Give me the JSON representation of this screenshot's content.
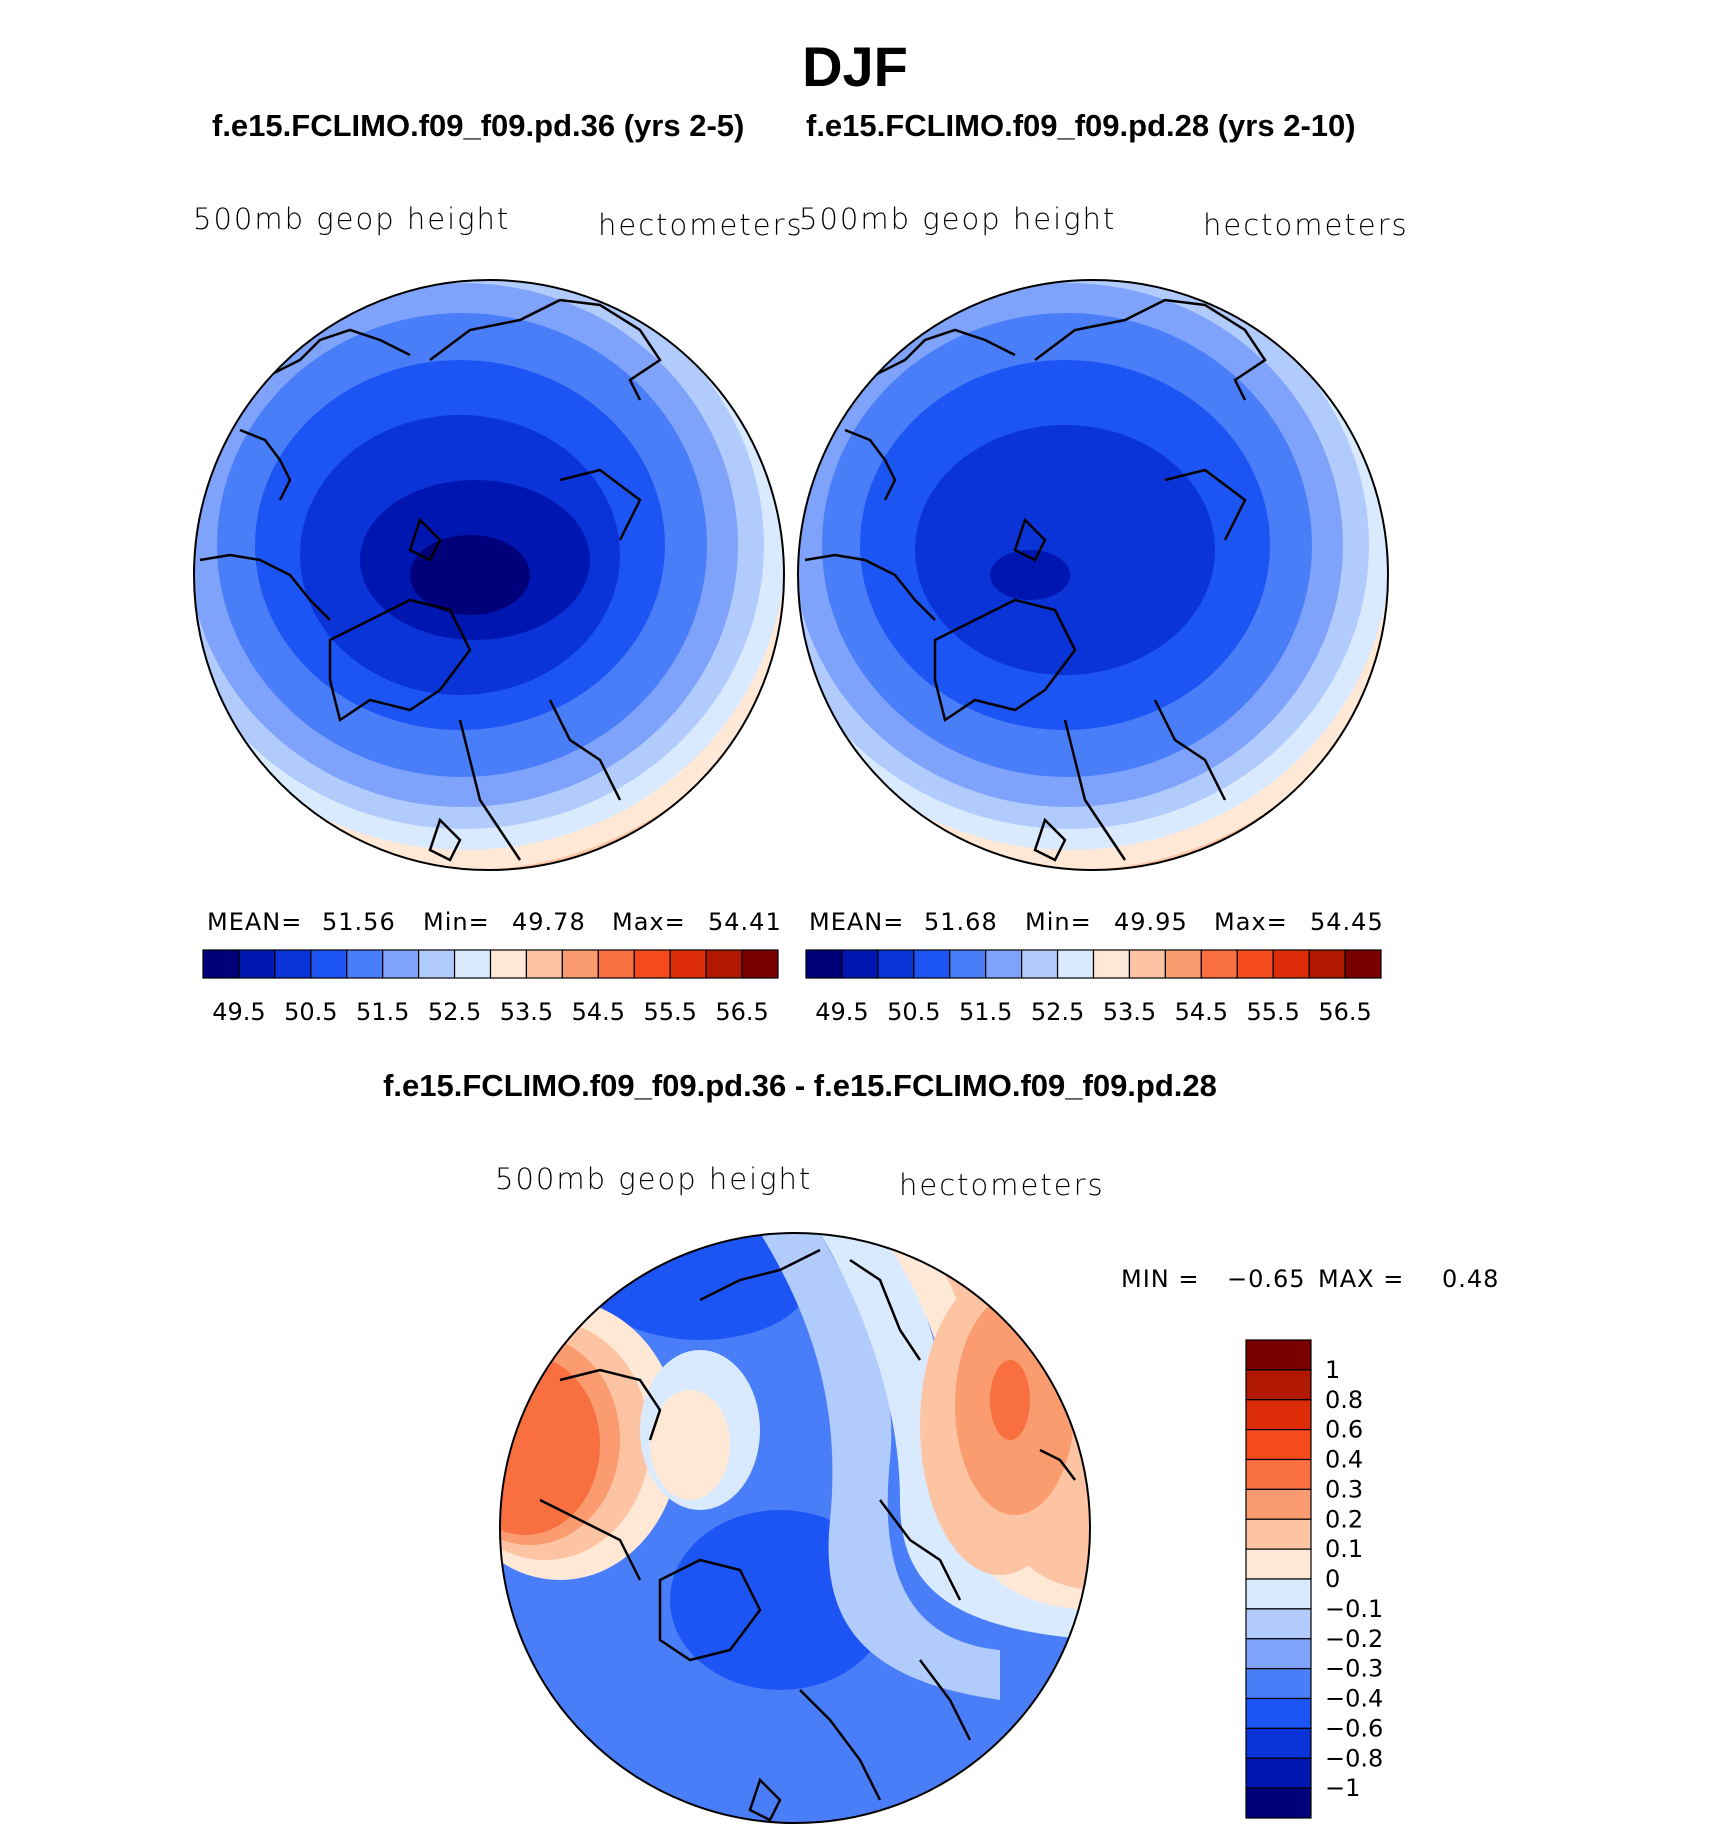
{
  "title": "DJF",
  "panels": [
    {
      "case_title": "f.e15.FCLIMO.f09_f09.pd.36 (yrs 2-5)",
      "left_label": "500mb geop height",
      "right_label": "hectometers",
      "stats": {
        "mean_label": "MEAN=",
        "mean": "51.56",
        "min_label": "Min=",
        "min": "49.78",
        "max_label": "Max=",
        "max": "54.41"
      }
    },
    {
      "case_title": "f.e15.FCLIMO.f09_f09.pd.28 (yrs 2-10)",
      "left_label": "500mb geop height",
      "right_label": "hectometers",
      "stats": {
        "mean_label": "MEAN=",
        "mean": "51.68",
        "min_label": "Min=",
        "min": "49.95",
        "max_label": "Max=",
        "max": "54.45"
      }
    }
  ],
  "colorbar": {
    "labels": [
      "49.5",
      "50.5",
      "51.5",
      "52.5",
      "53.5",
      "54.5",
      "55.5",
      "56.5"
    ],
    "colors": [
      "#00007a",
      "#0016b0",
      "#0a34d8",
      "#1d55f5",
      "#4a7ef8",
      "#7fa3fb",
      "#b2cbfd",
      "#daeafe",
      "#ffe8d6",
      "#fdc4a4",
      "#fb9c70",
      "#f97040",
      "#f54a1c",
      "#dc2c08",
      "#b01800",
      "#7a0000"
    ]
  },
  "difference": {
    "title": "f.e15.FCLIMO.f09_f09.pd.36 - f.e15.FCLIMO.f09_f09.pd.28",
    "left_label": "500mb geop height",
    "right_label": "hectometers",
    "min_label": "MIN =",
    "min": "−0.65",
    "max_label": "MAX =",
    "max": "0.48",
    "colorbar_labels": [
      "1",
      "0.8",
      "0.6",
      "0.4",
      "0.3",
      "0.2",
      "0.1",
      "0",
      "−0.1",
      "−0.2",
      "−0.3",
      "−0.4",
      "−0.6",
      "−0.8",
      "−1"
    ],
    "colorbar_colors": [
      "#7a0000",
      "#b01800",
      "#dc2c08",
      "#f54a1c",
      "#f97040",
      "#fb9c70",
      "#fdc4a4",
      "#ffe8d6",
      "#daeafe",
      "#b2cbfd",
      "#7fa3fb",
      "#4a7ef8",
      "#1d55f5",
      "#0a34d8",
      "#0016b0",
      "#00007a"
    ]
  },
  "chart_data": [
    {
      "type": "heatmap",
      "title": "f.e15.FCLIMO.f09_f09.pd.36 (yrs 2-5)",
      "variable": "500mb geop height",
      "units": "hectometers",
      "projection": "north polar stereographic",
      "mean": 51.56,
      "min": 49.78,
      "max": 54.41,
      "contour_levels": [
        49.5,
        50,
        50.5,
        51,
        51.5,
        52,
        52.5,
        53,
        53.5,
        54,
        54.5,
        55,
        55.5,
        56,
        56.5
      ]
    },
    {
      "type": "heatmap",
      "title": "f.e15.FCLIMO.f09_f09.pd.28 (yrs 2-10)",
      "variable": "500mb geop height",
      "units": "hectometers",
      "projection": "north polar stereographic",
      "mean": 51.68,
      "min": 49.95,
      "max": 54.45,
      "contour_levels": [
        49.5,
        50,
        50.5,
        51,
        51.5,
        52,
        52.5,
        53,
        53.5,
        54,
        54.5,
        55,
        55.5,
        56,
        56.5
      ]
    },
    {
      "type": "heatmap",
      "title": "f.e15.FCLIMO.f09_f09.pd.36 - f.e15.FCLIMO.f09_f09.pd.28",
      "variable": "500mb geop height",
      "units": "hectometers",
      "projection": "north polar stereographic",
      "min": -0.65,
      "max": 0.48,
      "contour_levels": [
        -1,
        -0.8,
        -0.6,
        -0.4,
        -0.3,
        -0.2,
        -0.1,
        0,
        0.1,
        0.2,
        0.3,
        0.4,
        0.6,
        0.8,
        1
      ]
    }
  ]
}
